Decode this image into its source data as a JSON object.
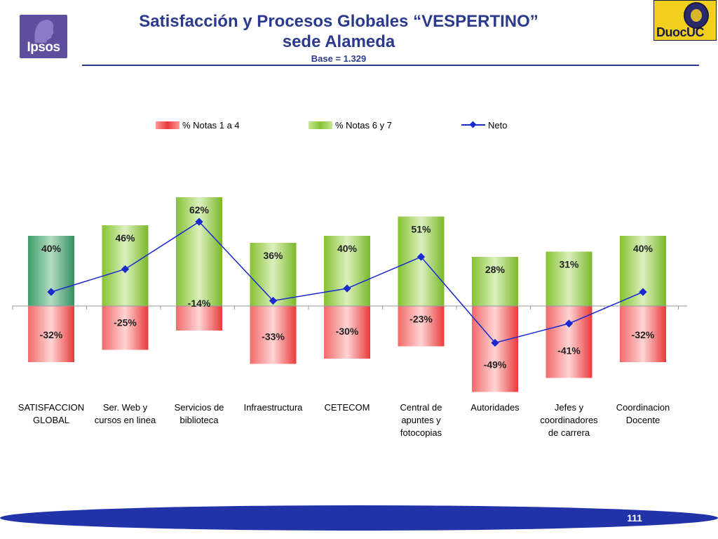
{
  "header": {
    "title_line1": "Satisfacción y Procesos Globales “VESPERTINO”",
    "title_line2": "sede Alameda",
    "base": "Base = 1.329",
    "logo_left": "Ipsos",
    "logo_right": "DuocUC"
  },
  "colors": {
    "negative": "#e83a3a",
    "positive": "#86c232",
    "positive_first": "#3e9e6a",
    "neto": "#1a2ad0",
    "title": "#2b3a8c"
  },
  "chart_data": {
    "type": "bar",
    "categories": [
      [
        "SATISFACCION",
        "GLOBAL"
      ],
      [
        "Ser. Web y",
        "cursos en linea"
      ],
      [
        "Servicios de",
        "biblioteca"
      ],
      [
        "Infraestructura"
      ],
      [
        "CETECOM"
      ],
      [
        "Central de",
        "apuntes y",
        "fotocopias"
      ],
      [
        "Autoridades"
      ],
      [
        "Jefes y",
        "coordinadores",
        "de carrera"
      ],
      [
        "Coordinacion",
        "Docente"
      ]
    ],
    "series": [
      {
        "name": "% Notas 1 a 4",
        "values": [
          -32,
          -25,
          -14,
          -33,
          -30,
          -23,
          -49,
          -41,
          -32
        ],
        "labels": [
          "-32%",
          "-25%",
          "-14%",
          "-33%",
          "-30%",
          "-23%",
          "-49%",
          "-41%",
          "-32%"
        ]
      },
      {
        "name": "% Notas 6 y 7",
        "values": [
          40,
          46,
          62,
          36,
          40,
          51,
          28,
          31,
          40
        ],
        "labels": [
          "40%",
          "46%",
          "62%",
          "36%",
          "40%",
          "51%",
          "28%",
          "31%",
          "40%"
        ]
      },
      {
        "name": "Neto",
        "type": "line",
        "values": [
          8,
          21,
          48,
          3,
          10,
          28,
          -21,
          -10,
          8
        ]
      }
    ],
    "legend_position": "top",
    "grid": false
  },
  "footer": {
    "page_number": "111"
  }
}
